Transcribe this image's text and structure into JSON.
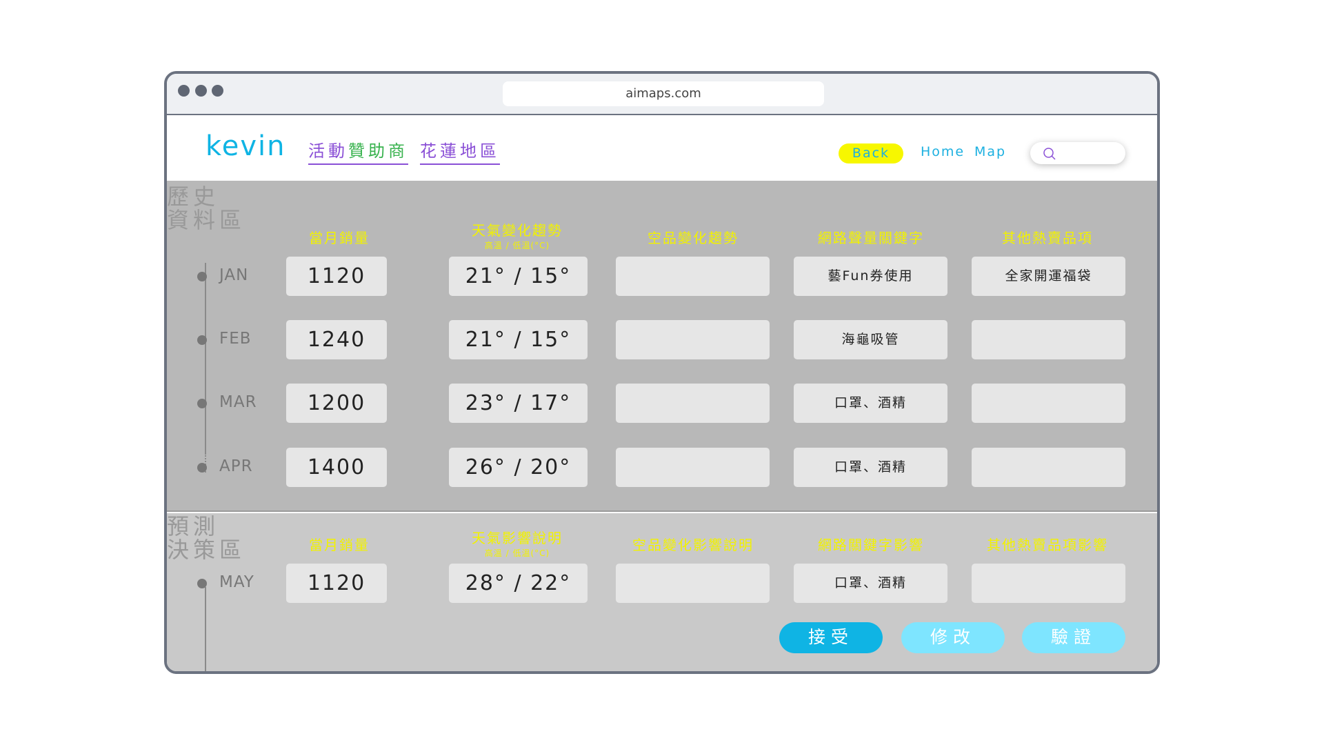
{
  "browser": {
    "url": "aimaps.com"
  },
  "nav": {
    "logo": "kevin",
    "link1_part1": "活動",
    "link1_part2": "贊助商",
    "link2": "花蓮地區",
    "back": "Back",
    "home": "Home",
    "map": "Map",
    "search_placeholder": ""
  },
  "colors": {
    "accent": "#0fb4e4",
    "yellow": "#f7f700",
    "purple": "#8a4fd6",
    "green": "#37b24d",
    "light_button": "#7ee5ff"
  },
  "history": {
    "label_line1": "歷史",
    "label_line2": "資料區",
    "headers": [
      "當月銷量",
      "天氣變化趨勢",
      "空品變化趨勢",
      "網路聲量關鍵字",
      "其他熱賣品項"
    ],
    "weather_sub": "高溫 / 低溫(°C)",
    "rows": [
      {
        "month": "JAN",
        "sales": "1120",
        "weather": "21° / 15°",
        "air": "",
        "keyword": "藝Fun券使用",
        "other": "全家開運福袋"
      },
      {
        "month": "FEB",
        "sales": "1240",
        "weather": "21° / 15°",
        "air": "",
        "keyword": "海龜吸管",
        "other": ""
      },
      {
        "month": "MAR",
        "sales": "1200",
        "weather": "23° / 17°",
        "air": "",
        "keyword": "口罩、酒精",
        "other": ""
      },
      {
        "month": "APR",
        "sales": "1400",
        "weather": "26° / 20°",
        "air": "",
        "keyword": "口罩、酒精",
        "other": ""
      }
    ]
  },
  "prediction": {
    "label_line1": "預測",
    "label_line2": "決策區",
    "headers": [
      "當月銷量",
      "天氣影響說明",
      "空品變化影響說明",
      "網路關鍵字影響",
      "其他熱賣品項影響"
    ],
    "weather_sub": "高溫 / 低溫(°C)",
    "row": {
      "month": "MAY",
      "sales": "1120",
      "weather": "28° / 22°",
      "air": "",
      "keyword": "口罩、酒精",
      "other": ""
    },
    "buttons": {
      "accept": "接受",
      "modify": "修改",
      "verify": "驗證"
    }
  }
}
